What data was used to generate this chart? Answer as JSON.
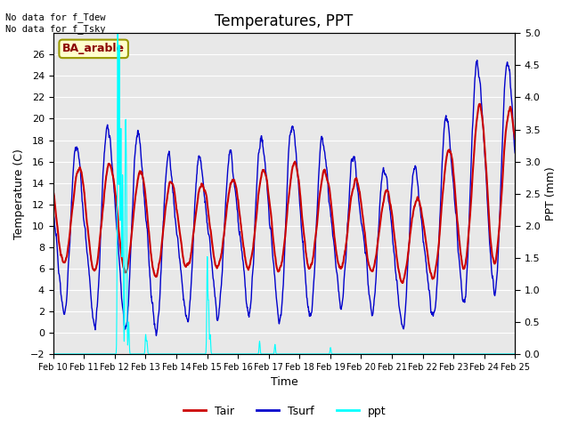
{
  "title": "Temperatures, PPT",
  "xlabel": "Time",
  "ylabel_left": "Temperature (C)",
  "ylabel_right": "PPT (mm)",
  "ylim_left": [
    -2,
    28
  ],
  "ylim_right": [
    0.0,
    5.0
  ],
  "yticks_left": [
    -2,
    0,
    2,
    4,
    6,
    8,
    10,
    12,
    14,
    16,
    18,
    20,
    22,
    24,
    26
  ],
  "yticks_right": [
    0.0,
    0.5,
    1.0,
    1.5,
    2.0,
    2.5,
    3.0,
    3.5,
    4.0,
    4.5,
    5.0
  ],
  "xtick_labels": [
    "Feb 10",
    "Feb 11",
    "Feb 12",
    "Feb 13",
    "Feb 14",
    "Feb 15",
    "Feb 16",
    "Feb 17",
    "Feb 18",
    "Feb 19",
    "Feb 20",
    "Feb 21",
    "Feb 22",
    "Feb 23",
    "Feb 24",
    "Feb 25"
  ],
  "color_tair": "#cc0000",
  "color_tsurf": "#0000cc",
  "color_ppt": "#00ffff",
  "color_bg": "#e8e8e8",
  "annotation_text": "No data for f_Tdew\nNo data for f_Tsky",
  "box_label": "BA_arable",
  "box_facecolor": "#ffffcc",
  "box_edgecolor": "#999900",
  "legend_labels": [
    "Tair",
    "Tsurf",
    "ppt"
  ],
  "figsize": [
    6.4,
    4.8
  ],
  "dpi": 100
}
